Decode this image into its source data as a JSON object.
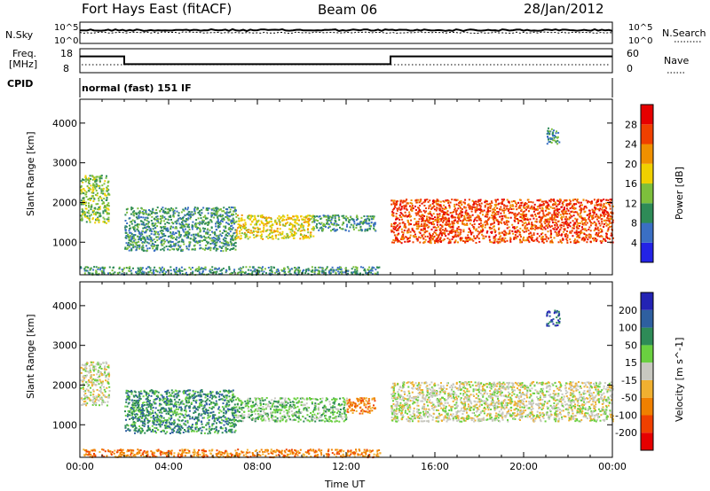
{
  "header": {
    "station": "Fort Hays East (fitACF)",
    "beam": "Beam 06",
    "date": "28/Jan/2012"
  },
  "noise_panel": {
    "left_label": "N.Sky",
    "right_label": "N.Search",
    "left_ticks": [
      "10^5",
      "10^0"
    ],
    "right_ticks": [
      "10^5",
      "10^0"
    ]
  },
  "freq_panel": {
    "left_label_line1": "Freq.",
    "left_label_line2": "[MHz]",
    "right_label": "Nave",
    "left_ticks": [
      "18",
      "8"
    ],
    "right_ticks": [
      "60",
      "0"
    ],
    "freq_mhz_segments": [
      {
        "start": "00:00",
        "end": "02:00",
        "value": 15
      },
      {
        "start": "02:00",
        "end": "14:00",
        "value": 11
      },
      {
        "start": "14:00",
        "end": "24:00",
        "value": 15
      }
    ]
  },
  "cpid": {
    "label": "CPID",
    "mode": "normal (fast) 151 IF"
  },
  "chart_data": [
    {
      "type": "heatmap",
      "name": "power",
      "ylabel": "Slant Range [km]",
      "xlabel": "",
      "yticks": [
        "1000",
        "2000",
        "3000",
        "4000"
      ],
      "ylim": [
        180,
        4600
      ],
      "colorbar_label": "Power [dB]",
      "colorbar_ticks": [
        "4",
        "8",
        "12",
        "16",
        "20",
        "24",
        "28"
      ],
      "colorbar_range": [
        0,
        30
      ],
      "colors": [
        "#2323e6",
        "#3a6fc4",
        "#2e8b57",
        "#7dbf3c",
        "#f0d000",
        "#f09000",
        "#f04000",
        "#e60000"
      ],
      "echo_regions": [
        {
          "t_start": 0.0,
          "t_end": 1.3,
          "r_low": 1500,
          "r_high": 2700,
          "level": 12
        },
        {
          "t_start": 2.0,
          "t_end": 7.0,
          "r_low": 800,
          "r_high": 1900,
          "level": 8
        },
        {
          "t_start": 7.0,
          "t_end": 10.5,
          "r_low": 1100,
          "r_high": 1700,
          "level": 16
        },
        {
          "t_start": 10.5,
          "t_end": 13.3,
          "r_low": 1300,
          "r_high": 1700,
          "level": 10
        },
        {
          "t_start": 14.0,
          "t_end": 24.0,
          "r_low": 1000,
          "r_high": 2100,
          "level": 24
        },
        {
          "t_start": 0.0,
          "t_end": 13.5,
          "r_low": 200,
          "r_high": 400,
          "level": 8
        },
        {
          "t_start": 21.0,
          "t_end": 21.6,
          "r_low": 3500,
          "r_high": 3900,
          "level": 8
        }
      ]
    },
    {
      "type": "heatmap",
      "name": "velocity",
      "ylabel": "Slant Range [km]",
      "xlabel": "Time UT",
      "xticks": [
        "00:00",
        "04:00",
        "08:00",
        "12:00",
        "16:00",
        "20:00",
        "00:00"
      ],
      "yticks": [
        "1000",
        "2000",
        "3000",
        "4000"
      ],
      "ylim": [
        180,
        4600
      ],
      "colorbar_label": "Velocity [m s^-1]",
      "colorbar_ticks": [
        "200",
        "100",
        "50",
        "15",
        "-15",
        "-50",
        "-100",
        "-200"
      ],
      "colors": [
        "#2323b4",
        "#2e5fa0",
        "#2e8b57",
        "#6ad040",
        "#c8c8c0",
        "#f0b030",
        "#f08000",
        "#f04000",
        "#e60000"
      ],
      "echo_regions": [
        {
          "t_start": 0.0,
          "t_end": 1.3,
          "r_low": 1500,
          "r_high": 2600,
          "velocity": 0
        },
        {
          "t_start": 2.0,
          "t_end": 7.0,
          "r_low": 800,
          "r_high": 1900,
          "velocity": 40
        },
        {
          "t_start": 7.0,
          "t_end": 12.0,
          "r_low": 1100,
          "r_high": 1700,
          "velocity": 30
        },
        {
          "t_start": 12.0,
          "t_end": 13.3,
          "r_low": 1300,
          "r_high": 1700,
          "velocity": -40
        },
        {
          "t_start": 14.0,
          "t_end": 24.0,
          "r_low": 1100,
          "r_high": 2100,
          "velocity": 0
        },
        {
          "t_start": 0.0,
          "t_end": 13.5,
          "r_low": 200,
          "r_high": 400,
          "velocity": -40
        },
        {
          "t_start": 21.0,
          "t_end": 21.6,
          "r_low": 3500,
          "r_high": 3900,
          "velocity": 80
        }
      ]
    }
  ]
}
